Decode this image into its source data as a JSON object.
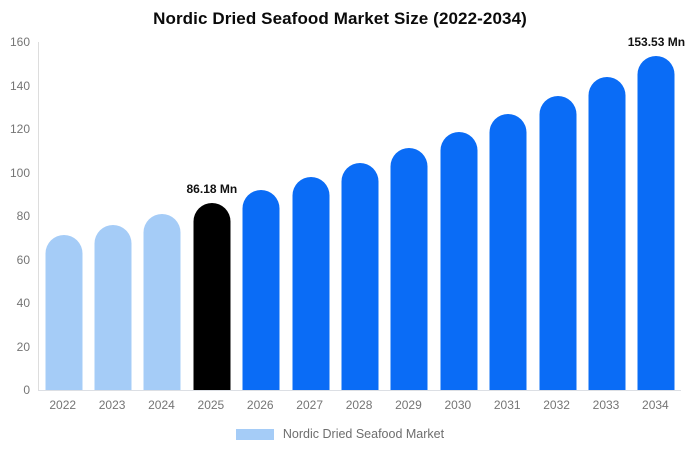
{
  "title": "Nordic Dried Seafood Market Size (2022-2034)",
  "chart_data": {
    "type": "bar",
    "title": "Nordic Dried Seafood Market Size (2022-2034)",
    "series_name": "Nordic Dried Seafood Market",
    "unit": "Mn",
    "categories": [
      "2022",
      "2023",
      "2024",
      "2025",
      "2026",
      "2027",
      "2028",
      "2029",
      "2030",
      "2031",
      "2032",
      "2033",
      "2034"
    ],
    "values": [
      71.1,
      75.8,
      80.8,
      86.18,
      91.9,
      98.0,
      104.5,
      111.4,
      118.8,
      126.7,
      135.0,
      144.0,
      153.53
    ],
    "segments": [
      "past",
      "past",
      "past",
      "current",
      "forecast",
      "forecast",
      "forecast",
      "forecast",
      "forecast",
      "forecast",
      "forecast",
      "forecast",
      "forecast"
    ],
    "point_labels": {
      "2025": "86.18 Mn",
      "2034": "153.53 Mn"
    },
    "colors": {
      "past": "#A5CCF7",
      "current": "#000000",
      "forecast": "#0A6CF6"
    },
    "ylim": [
      0,
      160
    ],
    "yticks": [
      0,
      20,
      40,
      60,
      80,
      100,
      120,
      140,
      160
    ],
    "grid": false,
    "legend_position": "bottom"
  },
  "axis": {
    "line_color": "#dddddd",
    "tick_text_color": "#757575"
  },
  "legend": {
    "label": "Nordic Dried Seafood Market",
    "swatch_color": "#A5CCF7"
  }
}
